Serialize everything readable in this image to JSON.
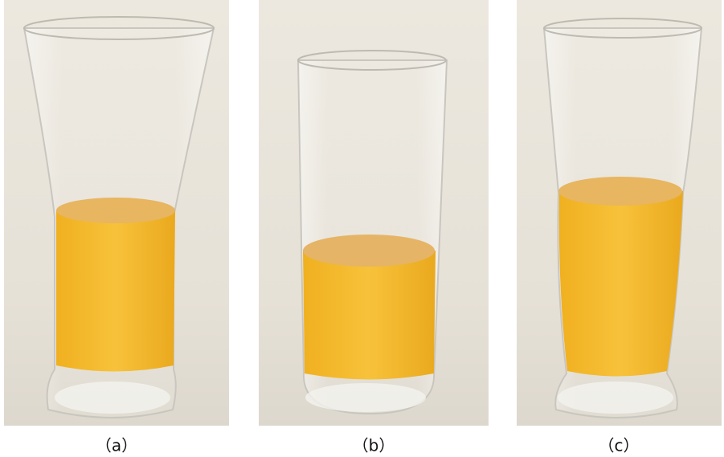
{
  "captions": [
    "（a）",
    "（b）",
    "（c）"
  ]
}
